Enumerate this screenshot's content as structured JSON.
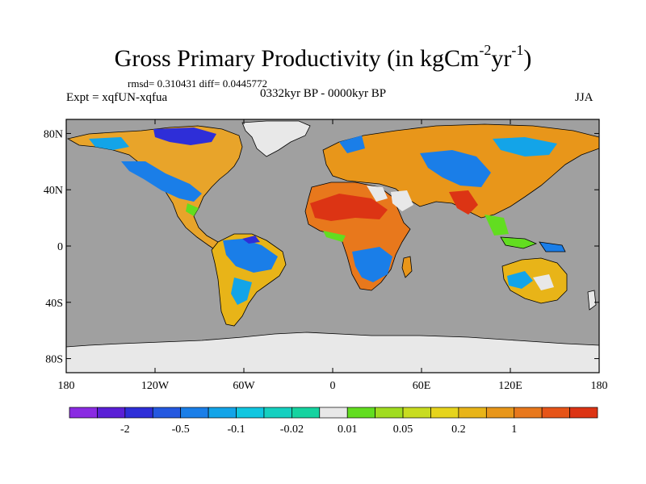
{
  "title": {
    "main": "Gross Primary Productivity (in kgCm",
    "exp1": "-2",
    "mid": "yr",
    "exp2": "-1",
    "end": ")"
  },
  "stats_label": "rmsd= 0.310431 diff= 0.0445772",
  "left_label": "Expt = xqfUN-xqfua",
  "center_label": "0332kyr BP - 0000kyr BP",
  "right_label": "JJA",
  "map": {
    "lat_ticks": [
      "80N",
      "40N",
      "0",
      "40S",
      "80S"
    ],
    "lat_values": [
      80,
      40,
      0,
      -40,
      -80
    ],
    "lon_ticks": [
      "180",
      "120W",
      "60W",
      "0",
      "60E",
      "120E",
      "180"
    ],
    "lon_values": [
      -180,
      -120,
      -60,
      0,
      60,
      120,
      180
    ],
    "lat_range": [
      -90,
      90
    ],
    "lon_range": [
      -180,
      180
    ],
    "ocean_color": "#a0a0a0",
    "ice_color": "#e8e8e8"
  },
  "colorbar": {
    "colors": [
      "#8a2be2",
      "#5a1fd6",
      "#2e2ed8",
      "#2458e0",
      "#1a7ee8",
      "#13a4e8",
      "#10c6e0",
      "#15d0c0",
      "#15d3a0",
      "#e8e8e8",
      "#62dd20",
      "#a0dc20",
      "#c8dc20",
      "#e6d41c",
      "#e8b418",
      "#e8961a",
      "#e8781c",
      "#e65418",
      "#dc3414"
    ],
    "labels": [
      "-2",
      "-0.5",
      "-0.1",
      "-0.02",
      "0.01",
      "0.05",
      "0.2",
      "1"
    ]
  }
}
